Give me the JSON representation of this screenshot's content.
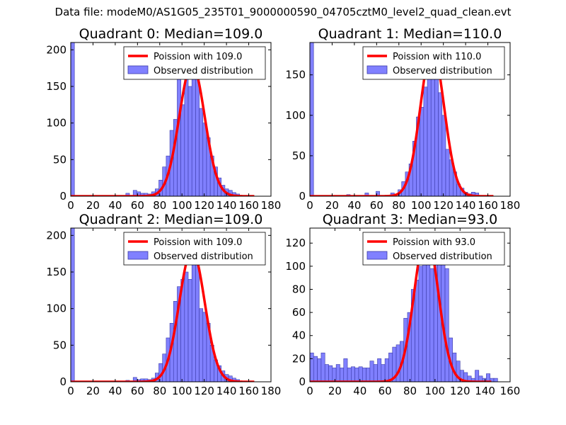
{
  "suptitle": "Data file: modeM0/AS1G05_235T01_9000000590_04705cztM0_level2_quad_clean.evt",
  "colors": {
    "bar_fill": "#8080ff",
    "bar_edge": "#3a3aa8",
    "fit_line": "#ff0000",
    "axes": "#000000"
  },
  "chart_data": [
    {
      "type": "bar",
      "title": "Quadrant 0: Median=109.0",
      "legend": {
        "placement": "upper-right",
        "entries": [
          "Poission with 109.0",
          "Observed distribution"
        ]
      },
      "xlim": [
        0,
        180
      ],
      "ylim": [
        0,
        210
      ],
      "xticks": [
        0,
        20,
        40,
        60,
        80,
        100,
        120,
        140,
        160,
        180
      ],
      "yticks": [
        0,
        50,
        100,
        150,
        200
      ],
      "xticklabels": [
        "0",
        "20",
        "40",
        "60",
        "80",
        "100",
        "120",
        "140",
        "160",
        "180"
      ],
      "yticklabels": [
        "0",
        "50",
        "100",
        "150",
        "200"
      ],
      "bin_width": 3.3,
      "bin_starts": [
        0,
        49.5,
        56.1,
        59.4,
        62.7,
        66,
        69.3,
        72.6,
        75.9,
        79.2,
        82.5,
        85.8,
        89.1,
        92.4,
        95.7,
        99,
        102.3,
        105.6,
        108.9,
        112.2,
        115.5,
        118.8,
        122.1,
        125.4,
        128.7,
        132,
        135.3,
        138.6,
        141.9,
        145.2,
        148.5
      ],
      "values": [
        210,
        4,
        8,
        6,
        4,
        4,
        3,
        6,
        10,
        22,
        40,
        55,
        90,
        105,
        160,
        125,
        185,
        150,
        172,
        195,
        120,
        100,
        80,
        55,
        40,
        25,
        15,
        10,
        8,
        5,
        3
      ],
      "fit": {
        "label": "Poission with 109.0",
        "mean": 109.0,
        "peak": 180,
        "sigma": 11.4,
        "x_range": [
          0,
          165
        ]
      }
    },
    {
      "type": "bar",
      "title": "Quadrant 1: Median=110.0",
      "legend": {
        "placement": "upper-right",
        "entries": [
          "Poission with 110.0",
          "Observed distribution"
        ]
      },
      "xlim": [
        0,
        180
      ],
      "ylim": [
        0,
        190
      ],
      "xticks": [
        0,
        20,
        40,
        60,
        80,
        100,
        120,
        140,
        160,
        180
      ],
      "yticks": [
        0,
        50,
        100,
        150
      ],
      "xticklabels": [
        "0",
        "20",
        "40",
        "60",
        "80",
        "100",
        "120",
        "140",
        "160",
        "180"
      ],
      "yticklabels": [
        "0",
        "50",
        "100",
        "150"
      ],
      "bin_width": 3.3,
      "bin_starts": [
        0,
        33,
        49.5,
        59.4,
        72.6,
        79.2,
        82.5,
        85.8,
        89.1,
        92.4,
        95.7,
        99,
        102.3,
        105.6,
        108.9,
        112.2,
        115.5,
        118.8,
        122.1,
        125.4,
        128.7,
        132,
        135.3,
        138.6,
        141.9,
        145.2,
        148.5
      ],
      "values": [
        190,
        2,
        4,
        6,
        4,
        8,
        18,
        30,
        40,
        68,
        98,
        110,
        135,
        170,
        175,
        155,
        128,
        100,
        58,
        45,
        30,
        15,
        10,
        5,
        3,
        5,
        4
      ],
      "fit": {
        "label": "Poission with 110.0",
        "mean": 110.0,
        "peak": 182,
        "sigma": 10.7,
        "x_range": [
          0,
          165
        ]
      }
    },
    {
      "type": "bar",
      "title": "Quadrant 2: Median=109.0",
      "legend": {
        "placement": "upper-right",
        "entries": [
          "Poission with 109.0",
          "Observed distribution"
        ]
      },
      "xlim": [
        0,
        180
      ],
      "ylim": [
        0,
        210
      ],
      "xticks": [
        0,
        20,
        40,
        60,
        80,
        100,
        120,
        140,
        160,
        180
      ],
      "yticks": [
        0,
        50,
        100,
        150,
        200
      ],
      "xticklabels": [
        "0",
        "20",
        "40",
        "60",
        "80",
        "100",
        "120",
        "140",
        "160",
        "180"
      ],
      "yticklabels": [
        "0",
        "50",
        "100",
        "150",
        "200"
      ],
      "bin_width": 3.3,
      "bin_starts": [
        0,
        49.5,
        56.1,
        59.4,
        62.7,
        66,
        69.3,
        72.6,
        75.9,
        79.2,
        82.5,
        85.8,
        89.1,
        92.4,
        95.7,
        99,
        102.3,
        105.6,
        108.9,
        112.2,
        115.5,
        118.8,
        122.1,
        125.4,
        128.7,
        132,
        135.3,
        138.6,
        141.9,
        145.2,
        148.5
      ],
      "values": [
        210,
        2,
        6,
        3,
        4,
        4,
        3,
        5,
        12,
        25,
        38,
        60,
        80,
        110,
        130,
        140,
        150,
        140,
        172,
        160,
        100,
        95,
        80,
        50,
        30,
        22,
        15,
        10,
        8,
        5,
        3
      ],
      "fit": {
        "label": "Poission with 109.0",
        "mean": 109.0,
        "peak": 180,
        "sigma": 11.4,
        "x_range": [
          0,
          165
        ]
      }
    },
    {
      "type": "bar",
      "title": "Quadrant 3: Median=93.0",
      "legend": {
        "placement": "upper-right",
        "entries": [
          "Poission with 93.0",
          "Observed distribution"
        ]
      },
      "xlim": [
        0,
        160
      ],
      "ylim": [
        0,
        133
      ],
      "xticks": [
        0,
        20,
        40,
        60,
        80,
        100,
        120,
        140,
        160
      ],
      "yticks": [
        0,
        20,
        40,
        60,
        80,
        100,
        120
      ],
      "xticklabels": [
        "0",
        "20",
        "40",
        "60",
        "80",
        "100",
        "120",
        "140",
        "160"
      ],
      "yticklabels": [
        "0",
        "20",
        "40",
        "60",
        "80",
        "100",
        "120"
      ],
      "bin_width": 3.0,
      "bin_starts": [
        0,
        3,
        6,
        9,
        12,
        15,
        18,
        21,
        24,
        27,
        30,
        33,
        36,
        39,
        42,
        45,
        48,
        51,
        54,
        57,
        60,
        63,
        66,
        69,
        72,
        75,
        78,
        81,
        84,
        87,
        90,
        93,
        96,
        99,
        102,
        105,
        108,
        111,
        114,
        117,
        120,
        123,
        126,
        129,
        132,
        135,
        138,
        141,
        144,
        147
      ],
      "values": [
        25,
        22,
        20,
        25,
        15,
        14,
        12,
        15,
        12,
        20,
        12,
        13,
        12,
        13,
        12,
        12,
        18,
        15,
        20,
        15,
        20,
        25,
        30,
        32,
        35,
        55,
        60,
        80,
        88,
        100,
        115,
        120,
        98,
        110,
        120,
        115,
        98,
        38,
        25,
        18,
        10,
        8,
        5,
        3,
        10,
        5,
        3,
        7,
        3,
        3
      ],
      "fit": {
        "label": "Poission with 93.0",
        "mean": 93.0,
        "peak": 128,
        "sigma": 9.6,
        "x_range": [
          0,
          145
        ]
      }
    }
  ]
}
